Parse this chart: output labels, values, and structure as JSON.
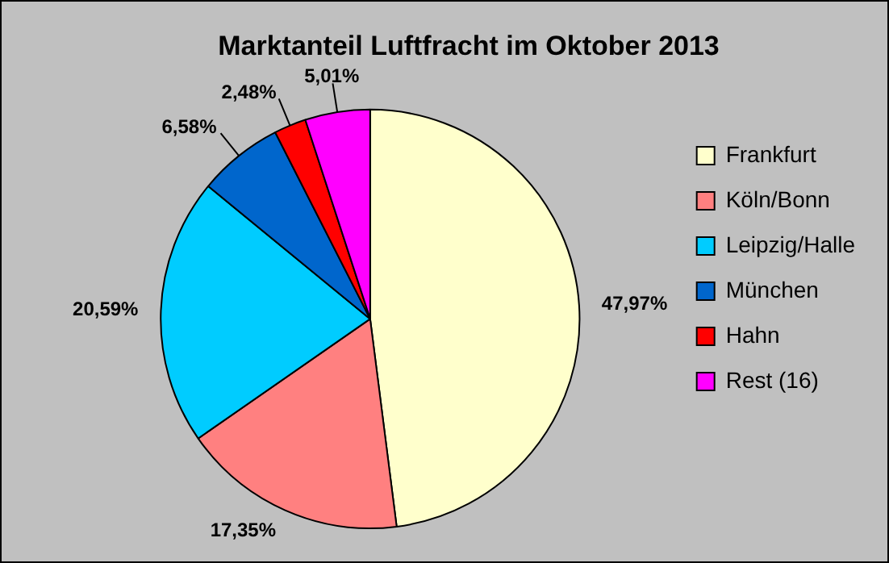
{
  "chart_data": {
    "type": "pie",
    "title": "Marktanteil Luftfracht im Oktober 2013",
    "categories": [
      "Frankfurt",
      "Köln/Bonn",
      "Leipzig/Halle",
      "München",
      "Hahn",
      "Rest (16)"
    ],
    "values": [
      47.97,
      17.35,
      20.59,
      6.58,
      2.48,
      5.01
    ],
    "colors": [
      "#ffffcc",
      "#ff8080",
      "#00ccff",
      "#0066cc",
      "#ff0000",
      "#ff00ff"
    ],
    "value_labels": [
      "47,97%",
      "17,35%",
      "20,59%",
      "6,58%",
      "2,48%",
      "5,01%"
    ],
    "legend": "right"
  }
}
